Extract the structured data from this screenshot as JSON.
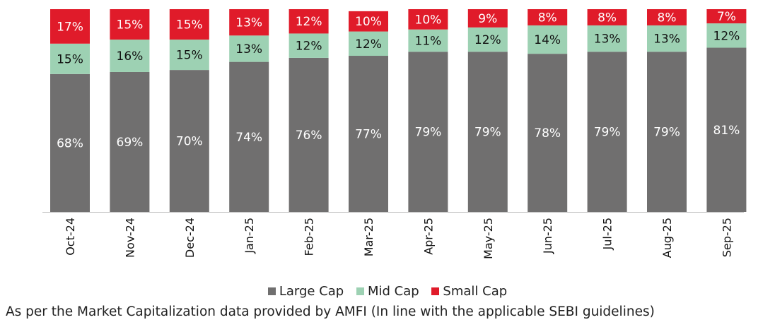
{
  "chart_data": {
    "type": "bar",
    "stacked": true,
    "categories": [
      "Oct-24",
      "Nov-24",
      "Dec-24",
      "Jan-25",
      "Feb-25",
      "Mar-25",
      "Apr-25",
      "May-25",
      "Jun-25",
      "Jul-25",
      "Aug-25",
      "Sep-25"
    ],
    "series": [
      {
        "name": "Large Cap",
        "color": "#706f6f",
        "label_color": "#ffffff",
        "values": [
          68,
          69,
          70,
          74,
          76,
          77,
          79,
          79,
          78,
          79,
          79,
          81
        ]
      },
      {
        "name": "Mid Cap",
        "color": "#9dd1b3",
        "label_color": "#111111",
        "values": [
          15,
          16,
          15,
          13,
          12,
          12,
          11,
          12,
          14,
          13,
          13,
          12
        ]
      },
      {
        "name": "Small Cap",
        "color": "#e01b2a",
        "label_color": "#ffffff",
        "values": [
          17,
          15,
          15,
          13,
          12,
          10,
          10,
          9,
          8,
          8,
          8,
          7
        ]
      }
    ],
    "ylim": [
      0,
      100
    ],
    "value_suffix": "%",
    "legend_position": "bottom"
  },
  "footnote": "As per the Market Capitalization data provided by AMFI (In line with the applicable SEBI guidelines)"
}
